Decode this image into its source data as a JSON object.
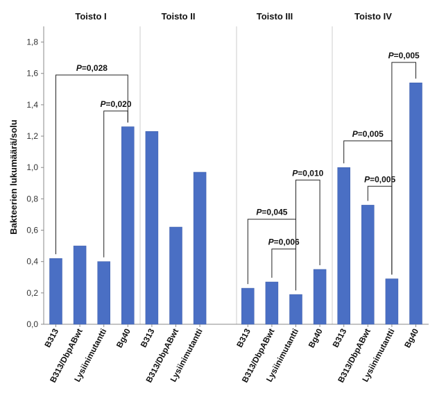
{
  "colors": {
    "bar": "#4a6fc4",
    "bar_edge": "#3a5aa8",
    "axis": "#888888",
    "divider": "#cccccc",
    "bracket": "#222222"
  },
  "chart_data": {
    "type": "bar",
    "ylabel": "Bakteerien lukumäärä/solu",
    "ylim": [
      0,
      1.9
    ],
    "yticks": [
      0,
      0.2,
      0.4,
      0.6,
      0.8,
      1.0,
      1.2,
      1.4,
      1.6,
      1.8
    ],
    "ytick_labels": [
      "0,0",
      "0,2",
      "0,4",
      "0,6",
      "0,8",
      "1,0",
      "1,2",
      "1,4",
      "1,6",
      "1,8"
    ],
    "panels": [
      {
        "title": "Toisto I",
        "categories": [
          "B313",
          "B313/DbpABwt",
          "Lysiinimutantti",
          "Bg40"
        ],
        "values": [
          0.42,
          0.5,
          0.4,
          1.26
        ],
        "comparisons": [
          {
            "from": 0,
            "to": 3,
            "label_prefix": "P",
            "label_value": "=0,028",
            "level": 1.59
          },
          {
            "from": 2,
            "to": 3,
            "label_prefix": "P",
            "label_value": "=0,020",
            "level": 1.36
          }
        ]
      },
      {
        "title": "Toisto II",
        "categories": [
          "B313",
          "B313/DbpABwt",
          "Lysiinimutantti"
        ],
        "values": [
          1.23,
          0.62,
          0.97
        ],
        "comparisons": []
      },
      {
        "title": "Toisto III",
        "categories": [
          "B313",
          "B313/DbpABwt",
          "Lysiinimutantti",
          "Bg40"
        ],
        "values": [
          0.23,
          0.27,
          0.19,
          0.35
        ],
        "comparisons": [
          {
            "from": 0,
            "to": 2,
            "label_prefix": "P",
            "label_value": "=0,045",
            "level": 0.67
          },
          {
            "from": 1,
            "to": 2,
            "label_prefix": "P",
            "label_value": "=0,006",
            "level": 0.48
          },
          {
            "from": 2,
            "to": 3,
            "label_prefix": "P",
            "label_value": "=0,010",
            "level": 0.92
          }
        ]
      },
      {
        "title": "Toisto IV",
        "categories": [
          "B313",
          "B313/DbpABwt",
          "Lysiinimutantti",
          "Bg40"
        ],
        "values": [
          1.0,
          0.76,
          0.29,
          1.54
        ],
        "comparisons": [
          {
            "from": 0,
            "to": 2,
            "label_prefix": "P",
            "label_value": "=0,005",
            "level": 1.17
          },
          {
            "from": 1,
            "to": 2,
            "label_prefix": "P",
            "label_value": "=0,005",
            "level": 0.88
          },
          {
            "from": 2,
            "to": 3,
            "label_prefix": "P",
            "label_value": "=0,005",
            "level": 1.67
          }
        ]
      }
    ]
  }
}
